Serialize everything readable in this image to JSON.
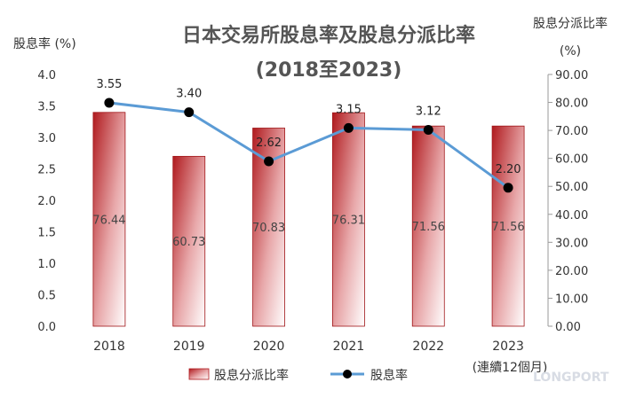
{
  "chart_data": {
    "type": "bar",
    "title": "日本交易所股息率及股息分派比率",
    "subtitle": "(2018至2023)",
    "categories": [
      "2018",
      "2019",
      "2020",
      "2021",
      "2022",
      "2023"
    ],
    "category_note": "(連續12個月)",
    "left_axis": {
      "label": "股息率 (%)",
      "range": [
        0,
        4.0
      ],
      "ticks": [
        "0.0",
        "0.5",
        "1.0",
        "1.5",
        "2.0",
        "2.5",
        "3.0",
        "3.5",
        "4.0"
      ]
    },
    "right_axis": {
      "label_line1": "股息分派比率",
      "label_line2": "(%)",
      "range": [
        0,
        90
      ],
      "ticks": [
        "0.00",
        "10.00",
        "20.00",
        "30.00",
        "40.00",
        "50.00",
        "60.00",
        "70.00",
        "80.00",
        "90.00"
      ]
    },
    "series": [
      {
        "name": "股息分派比率",
        "type": "bar",
        "axis": "right",
        "values": [
          76.44,
          60.73,
          70.83,
          76.31,
          71.56,
          71.56
        ],
        "labels": [
          "76.44",
          "60.73",
          "70.83",
          "76.31",
          "71.56",
          "71.56"
        ],
        "color": "#c0181c"
      },
      {
        "name": "股息率",
        "type": "line",
        "axis": "left",
        "values": [
          3.55,
          3.4,
          2.62,
          3.15,
          3.12,
          2.2
        ],
        "labels": [
          "3.55",
          "3.40",
          "2.62",
          "3.15",
          "3.12",
          "2.20"
        ],
        "color": "#5b9bd5",
        "marker_color": "#000000"
      }
    ],
    "legend_position": "bottom",
    "grid": false
  },
  "watermark": "LONGPORT"
}
